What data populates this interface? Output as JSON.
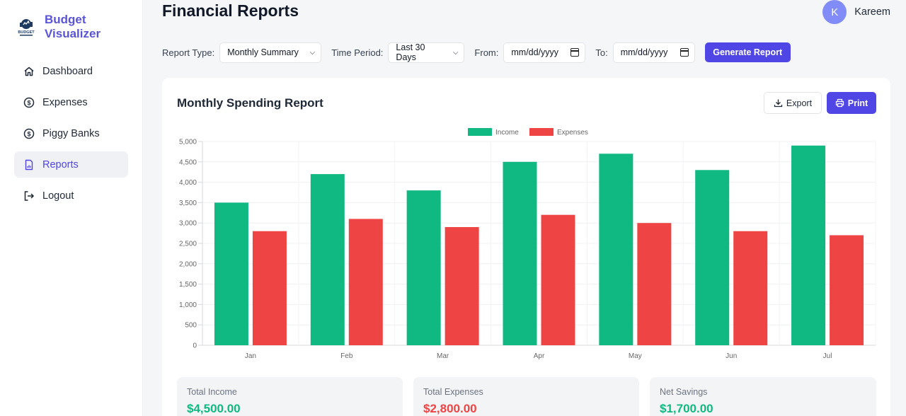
{
  "brand": {
    "line1": "Budget",
    "line2": "Visualizer",
    "logo_text": "BUDGET"
  },
  "sidebar": {
    "items": [
      {
        "label": "Dashboard",
        "icon": "home-icon"
      },
      {
        "label": "Expenses",
        "icon": "dollar-circle-icon"
      },
      {
        "label": "Piggy Banks",
        "icon": "dollar-circle-icon"
      },
      {
        "label": "Reports",
        "icon": "file-chart-icon",
        "active": true
      },
      {
        "label": "Logout",
        "icon": "logout-icon"
      }
    ]
  },
  "header": {
    "title": "Financial Reports",
    "user_initial": "K",
    "user_name": "Kareem"
  },
  "filters": {
    "report_type_label": "Report Type:",
    "report_type_value": "Monthly Summary",
    "time_period_label": "Time Period:",
    "time_period_value": "Last 30 Days",
    "from_label": "From:",
    "from_placeholder": "mm/dd/yyyy",
    "to_label": "To:",
    "to_placeholder": "mm/dd/yyyy",
    "generate_label": "Generate Report"
  },
  "card": {
    "title": "Monthly Spending Report",
    "export_label": "Export",
    "print_label": "Print"
  },
  "chart_data": {
    "type": "bar",
    "categories": [
      "Jan",
      "Feb",
      "Mar",
      "Apr",
      "May",
      "Jun",
      "Jul"
    ],
    "series": [
      {
        "name": "Income",
        "color": "#10b981",
        "values": [
          3500,
          4200,
          3800,
          4500,
          4700,
          4300,
          4900
        ]
      },
      {
        "name": "Expenses",
        "color": "#ef4444",
        "values": [
          2800,
          3100,
          2900,
          3200,
          3000,
          2800,
          2700
        ]
      }
    ],
    "ylim": [
      0,
      5000
    ],
    "yticks": [
      "0",
      "500",
      "1,000",
      "1,500",
      "2,000",
      "2,500",
      "3,000",
      "3,500",
      "4,000",
      "4,500",
      "5,000"
    ],
    "grid": true,
    "legend": "top-center"
  },
  "summary": {
    "income_label": "Total Income",
    "income_value": "$4,500.00",
    "expenses_label": "Total Expenses",
    "expenses_value": "$2,800.00",
    "savings_label": "Net Savings",
    "savings_value": "$1,700.00"
  },
  "colors": {
    "accent": "#4f46e5",
    "brand": "#5a55d6",
    "income": "#10b981",
    "expense": "#ef4444"
  }
}
